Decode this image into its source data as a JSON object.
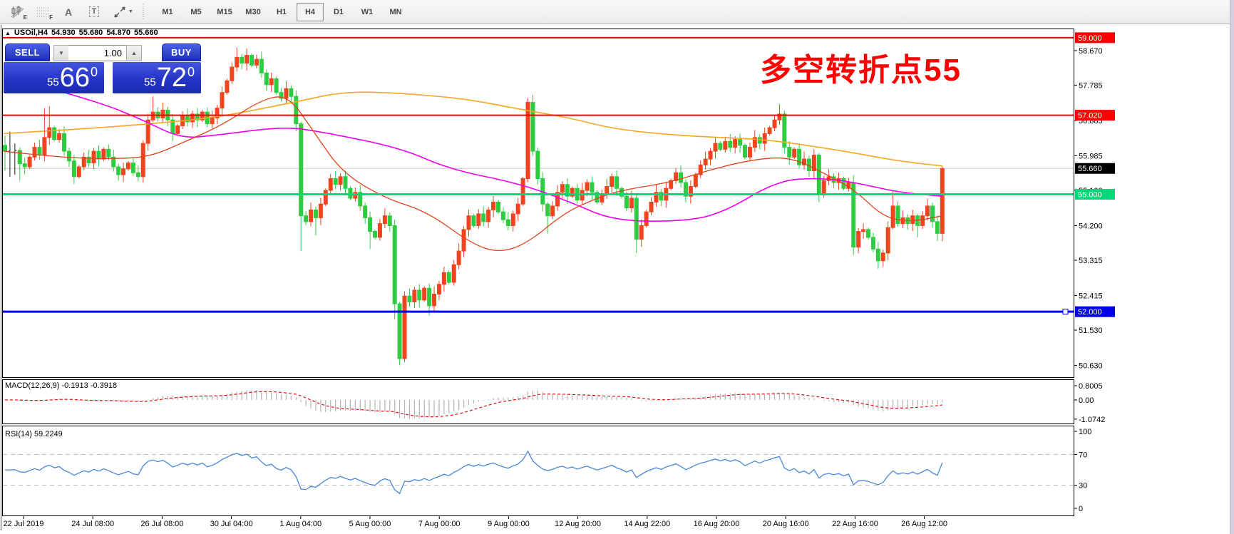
{
  "toolbar": {
    "tools": [
      {
        "id": "chart-edit-icon",
        "sub": "E"
      },
      {
        "id": "grid-icon",
        "sub": "F"
      },
      {
        "id": "text-label-tool",
        "label": "A"
      },
      {
        "id": "text-box-tool",
        "label": "T"
      },
      {
        "id": "arrows-tool",
        "caret": "▼"
      }
    ],
    "timeframes": [
      "M1",
      "M5",
      "M15",
      "M30",
      "H1",
      "H4",
      "D1",
      "W1",
      "MN"
    ],
    "active_timeframe": "H4"
  },
  "symbol_header": {
    "arrow": "▲",
    "symbol": "USOil,H4",
    "open": "54.930",
    "high": "55.680",
    "low": "54.870",
    "close": "55.660"
  },
  "trade_panel": {
    "sell_label": "SELL",
    "buy_label": "BUY",
    "volume": "1.00",
    "sell_price": {
      "prefix": "55",
      "big": "66",
      "sup": "0"
    },
    "buy_price": {
      "prefix": "55",
      "big": "72",
      "sup": "0"
    }
  },
  "annotation": {
    "text": "多空转折点55",
    "color": "#ff0000"
  },
  "indicators": {
    "macd": {
      "label": "MACD(12,26,9) -0.1913 -0.3918",
      "axis": [
        "0.8005",
        "0.00",
        "-1.0742"
      ],
      "axis_values": [
        0.8005,
        0.0,
        -1.0742
      ],
      "histogram_color": "#b4b4b4",
      "signal_color": "#e01212",
      "params": [
        12,
        26,
        9
      ]
    },
    "rsi": {
      "label": "RSI(14) 59.2249",
      "axis": [
        "100",
        "70",
        "30",
        "0"
      ],
      "axis_values": [
        100,
        70,
        30,
        0
      ],
      "line_color": "#4a86d8",
      "level_lines": [
        70,
        30
      ],
      "period": 14
    }
  },
  "price_axis": {
    "ticks": [
      "58.670",
      "57.785",
      "56.885",
      "55.985",
      "55.100",
      "54.200",
      "53.315",
      "52.415",
      "51.530",
      "50.630"
    ],
    "badges": [
      {
        "text": "59.000",
        "price": 59.0,
        "bg": "#ff0000",
        "fg": "#ffffff"
      },
      {
        "text": "57.020",
        "price": 57.02,
        "bg": "#ff0000",
        "fg": "#ffffff"
      },
      {
        "text": "55.660",
        "price": 55.66,
        "bg": "#000000",
        "fg": "#ffffff"
      },
      {
        "text": "55.000",
        "price": 55.0,
        "bg": "#00d87a",
        "fg": "#ffffff"
      },
      {
        "text": "52.000",
        "price": 52.0,
        "bg": "#0000e8",
        "fg": "#ffffff"
      }
    ]
  },
  "time_axis": {
    "labels": [
      "22 Jul 2019",
      "24 Jul 08:00",
      "26 Jul 08:00",
      "30 Jul 04:00",
      "1 Aug 04:00",
      "5 Aug 00:00",
      "7 Aug 00:00",
      "9 Aug 00:00",
      "12 Aug 20:00",
      "14 Aug 22:00",
      "16 Aug 20:00",
      "20 Aug 16:00",
      "22 Aug 16:00",
      "26 Aug 12:00"
    ]
  },
  "chart_data": {
    "type": "candlestick",
    "symbol": "USOil",
    "timeframe": "H4",
    "ohlc_display": {
      "open": 54.93,
      "high": 55.68,
      "low": 54.87,
      "close": 55.66
    },
    "bull_color": "#f0441e",
    "bear_color": "#2ecc40",
    "doji_color": "#1a1a1a",
    "closes": [
      56.1,
      56.08,
      56.12,
      55.78,
      55.7,
      55.95,
      56.2,
      56.0,
      56.45,
      56.7,
      56.4,
      56.55,
      56.1,
      55.85,
      55.45,
      55.7,
      55.95,
      55.8,
      56.1,
      55.9,
      56.15,
      55.95,
      55.7,
      55.5,
      55.65,
      55.8,
      55.55,
      55.45,
      56.3,
      56.9,
      57.1,
      56.95,
      57.15,
      56.9,
      56.55,
      56.75,
      57.0,
      56.85,
      57.05,
      56.9,
      57.1,
      56.8,
      56.95,
      57.2,
      57.6,
      57.9,
      58.25,
      58.5,
      58.35,
      58.55,
      58.3,
      58.45,
      58.1,
      57.8,
      57.95,
      57.6,
      57.45,
      57.7,
      57.5,
      56.8,
      54.45,
      54.3,
      54.6,
      54.4,
      54.75,
      55.1,
      55.4,
      55.25,
      55.45,
      55.15,
      54.9,
      55.05,
      54.7,
      54.4,
      54.05,
      53.9,
      54.25,
      54.45,
      54.2,
      52.2,
      50.8,
      52.4,
      52.25,
      52.55,
      52.3,
      52.6,
      52.15,
      52.45,
      52.7,
      53.0,
      52.75,
      53.2,
      53.55,
      54.1,
      54.45,
      54.2,
      54.5,
      54.3,
      54.6,
      54.8,
      54.55,
      54.35,
      54.2,
      54.5,
      54.75,
      55.4,
      57.35,
      56.1,
      55.4,
      54.75,
      54.45,
      54.7,
      55.05,
      55.25,
      54.95,
      55.15,
      54.85,
      55.1,
      55.3,
      55.05,
      54.8,
      55.0,
      55.2,
      55.45,
      55.15,
      54.95,
      54.65,
      54.9,
      53.85,
      54.2,
      54.55,
      54.8,
      55.05,
      54.85,
      55.15,
      55.35,
      55.55,
      55.3,
      54.95,
      55.2,
      55.5,
      55.75,
      55.9,
      56.1,
      56.3,
      56.15,
      56.35,
      56.2,
      56.4,
      56.25,
      55.95,
      56.2,
      56.45,
      56.3,
      56.55,
      56.7,
      56.9,
      57.05,
      56.2,
      55.95,
      56.15,
      55.75,
      55.9,
      55.6,
      56.0,
      55.0,
      55.35,
      55.45,
      55.3,
      55.4,
      55.15,
      55.3,
      53.65,
      54.05,
      54.1,
      53.9,
      53.6,
      53.3,
      53.5,
      54.15,
      54.7,
      54.25,
      54.4,
      54.25,
      54.45,
      54.2,
      54.45,
      54.7,
      54.3,
      54.0,
      55.66
    ],
    "wick_overrides": {
      "0": [
        56.5,
        55.6
      ],
      "1": [
        56.6,
        55.45
      ],
      "2": [
        56.3,
        55.5
      ],
      "3": [
        56.2,
        55.35
      ],
      "8": [
        57.2,
        null
      ],
      "9": [
        57.25,
        null
      ],
      "30": [
        57.5,
        null
      ],
      "47": [
        58.75,
        null
      ],
      "49": [
        58.72,
        null
      ],
      "60": [
        null,
        53.55
      ],
      "63": [
        null,
        53.95
      ],
      "74": [
        null,
        53.6
      ],
      "79": [
        null,
        51.8
      ],
      "80": [
        null,
        50.63
      ],
      "86": [
        null,
        51.9
      ],
      "106": [
        57.45,
        null
      ],
      "110": [
        null,
        54.0
      ],
      "128": [
        null,
        53.5
      ],
      "157": [
        57.3,
        null
      ],
      "165": [
        null,
        54.8
      ],
      "172": [
        null,
        53.45
      ],
      "177": [
        null,
        53.1
      ],
      "180": [
        55.1,
        null
      ],
      "185": [
        null,
        53.9
      ],
      "190": [
        null,
        53.8
      ]
    },
    "levels": [
      {
        "price": 59.0,
        "color": "#e60000",
        "width": 2,
        "role": "resistance"
      },
      {
        "price": 57.02,
        "color": "#ff0000",
        "width": 2,
        "role": "resistance"
      },
      {
        "price": 55.66,
        "color": "#c8c8c8",
        "width": 1,
        "role": "current-price"
      },
      {
        "price": 55.0,
        "color": "#00d87a",
        "width": 3,
        "role": "pivot"
      },
      {
        "price": 52.0,
        "color": "#0000f0",
        "width": 3,
        "role": "support",
        "handle": true
      }
    ],
    "moving_averages": [
      {
        "name": "ma-slow-orange",
        "color": "#f5a623",
        "width": 1.6,
        "points": [
          [
            5,
            56.55
          ],
          [
            100,
            56.65
          ],
          [
            200,
            56.78
          ],
          [
            300,
            56.95
          ],
          [
            413,
            57.35
          ],
          [
            480,
            57.62
          ],
          [
            550,
            57.6
          ],
          [
            650,
            57.45
          ],
          [
            730,
            57.17
          ],
          [
            800,
            56.95
          ],
          [
            860,
            56.67
          ],
          [
            950,
            56.5
          ],
          [
            1050,
            56.42
          ],
          [
            1090,
            56.36
          ],
          [
            1150,
            56.2
          ],
          [
            1200,
            56.05
          ],
          [
            1260,
            55.85
          ],
          [
            1322,
            55.72
          ]
        ]
      },
      {
        "name": "ma-medium-magenta",
        "color": "#ee00ee",
        "width": 1.6,
        "points": [
          [
            60,
            57.75
          ],
          [
            137,
            57.37
          ],
          [
            200,
            56.9
          ],
          [
            253,
            56.43
          ],
          [
            300,
            56.5
          ],
          [
            397,
            56.73
          ],
          [
            450,
            56.6
          ],
          [
            563,
            56.18
          ],
          [
            630,
            55.64
          ],
          [
            730,
            55.27
          ],
          [
            800,
            54.8
          ],
          [
            860,
            54.33
          ],
          [
            950,
            54.3
          ],
          [
            1010,
            54.48
          ],
          [
            1090,
            55.35
          ],
          [
            1150,
            55.42
          ],
          [
            1200,
            55.3
          ],
          [
            1260,
            55.05
          ],
          [
            1322,
            54.95
          ]
        ]
      },
      {
        "name": "ma-fast-red",
        "color": "#e0431a",
        "width": 1.3,
        "points": [
          [
            5,
            56.1
          ],
          [
            80,
            55.95
          ],
          [
            150,
            55.9
          ],
          [
            210,
            55.95
          ],
          [
            260,
            56.35
          ],
          [
            310,
            56.75
          ],
          [
            370,
            57.45
          ],
          [
            405,
            57.52
          ],
          [
            440,
            56.6
          ],
          [
            480,
            55.55
          ],
          [
            540,
            54.9
          ],
          [
            600,
            54.55
          ],
          [
            660,
            53.75
          ],
          [
            700,
            53.5
          ],
          [
            740,
            53.75
          ],
          [
            790,
            54.5
          ],
          [
            830,
            54.85
          ],
          [
            870,
            55.1
          ],
          [
            940,
            55.3
          ],
          [
            1000,
            55.65
          ],
          [
            1060,
            55.9
          ],
          [
            1110,
            55.95
          ],
          [
            1160,
            55.5
          ],
          [
            1200,
            55.1
          ],
          [
            1240,
            54.4
          ],
          [
            1280,
            54.3
          ],
          [
            1322,
            54.45
          ]
        ]
      }
    ]
  }
}
